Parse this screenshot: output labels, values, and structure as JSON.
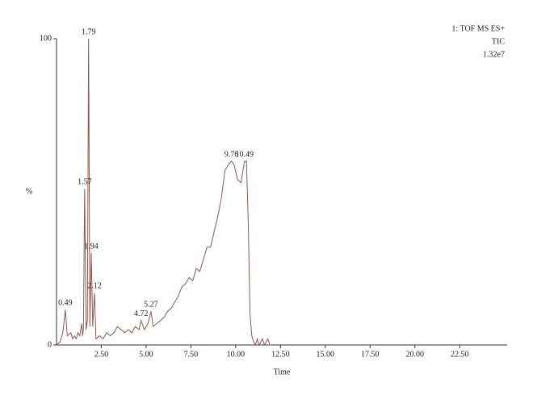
{
  "chart_data": {
    "type": "line",
    "info": [
      "1: TOF MS ES+",
      "TIC",
      "1.32e7"
    ],
    "x_label": "Time",
    "y_label": "%",
    "color": "#8a5a50",
    "x": [
      0,
      0.2,
      0.35,
      0.49,
      0.6,
      0.8,
      0.9,
      1.0,
      1.1,
      1.2,
      1.3,
      1.4,
      1.45,
      1.5,
      1.57,
      1.65,
      1.72,
      1.79,
      1.86,
      1.94,
      2.02,
      2.12,
      2.2,
      2.4,
      2.6,
      2.8,
      3.0,
      3.2,
      3.4,
      3.6,
      3.8,
      4.0,
      4.2,
      4.4,
      4.6,
      4.72,
      4.9,
      5.1,
      5.27,
      5.4,
      5.6,
      5.8,
      6.0,
      6.2,
      6.4,
      6.6,
      6.8,
      7.0,
      7.2,
      7.4,
      7.6,
      7.8,
      8.0,
      8.2,
      8.4,
      8.6,
      8.8,
      9.0,
      9.2,
      9.4,
      9.6,
      9.76,
      9.9,
      10.1,
      10.3,
      10.49,
      10.6,
      10.7,
      10.8,
      10.9,
      11.0,
      11.1,
      11.2,
      11.3,
      11.5,
      11.6,
      11.8,
      11.9,
      12.0
    ],
    "values": [
      0,
      1,
      4,
      11.5,
      3,
      4,
      2,
      3,
      2,
      4,
      3,
      7,
      3,
      5,
      51,
      5,
      8,
      100,
      6,
      30,
      6,
      17,
      2,
      3,
      2,
      4,
      3,
      4,
      6,
      5,
      4,
      5,
      4,
      6,
      5,
      8,
      5,
      7,
      11,
      6,
      7,
      8,
      9,
      11,
      12,
      14,
      16,
      19,
      20,
      22,
      21,
      25,
      24,
      28,
      32,
      32,
      37,
      42,
      48,
      57,
      59,
      60,
      59,
      54,
      53,
      60,
      60,
      40,
      10,
      3,
      1,
      0,
      2,
      0,
      2,
      0,
      2,
      0,
      0
    ],
    "annotations": [
      {
        "x": 0.49,
        "y": 11.5
      },
      {
        "x": 1.57,
        "y": 51
      },
      {
        "x": 1.79,
        "y": 100
      },
      {
        "x": 1.94,
        "y": 30
      },
      {
        "x": 2.12,
        "y": 17
      },
      {
        "x": 4.72,
        "y": 8
      },
      {
        "x": 5.27,
        "y": 11
      },
      {
        "x": 9.76,
        "y": 60
      },
      {
        "x": 10.49,
        "y": 60
      }
    ],
    "xlim": [
      0,
      25.15
    ],
    "ylim": [
      0,
      100
    ],
    "xticks": [
      {
        "value": 2.5,
        "label": "2.50"
      },
      {
        "value": 5,
        "label": "5.00"
      },
      {
        "value": 7.5,
        "label": "7.50"
      },
      {
        "value": 10,
        "label": "10.00"
      },
      {
        "value": 12.5,
        "label": "12.50"
      },
      {
        "value": 15,
        "label": "15.00"
      },
      {
        "value": 17.5,
        "label": "17.50"
      },
      {
        "value": 20,
        "label": "20.00"
      },
      {
        "value": 22.5,
        "label": "22.50"
      }
    ],
    "yticks": [
      0,
      100
    ]
  }
}
